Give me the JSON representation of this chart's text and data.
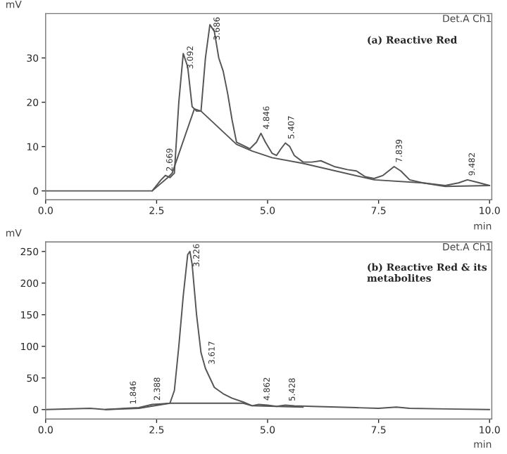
{
  "chart_data": [
    {
      "type": "line",
      "title": "(a) Reactive Red",
      "xlabel": "min",
      "ylabel": "mV",
      "xlim": [
        0,
        10.05
      ],
      "ylim": [
        -2,
        40
      ],
      "xticks": [
        {
          "value": 0,
          "label": "0.0"
        },
        {
          "value": 2.5,
          "label": "2.5"
        },
        {
          "value": 5,
          "label": "5.0"
        },
        {
          "value": 7.5,
          "label": "7.5"
        },
        {
          "value": 10,
          "label": "10.0"
        }
      ],
      "yticks": [
        0,
        10,
        20,
        30
      ],
      "grid": false,
      "series": [
        {
          "color": "#555555",
          "x": [
            0,
            2.4,
            2.6,
            2.7,
            2.8,
            2.9,
            3.0,
            3.1,
            3.2,
            3.3,
            3.4,
            3.5,
            3.6,
            3.7,
            3.8,
            3.9,
            4.0,
            4.1,
            4.2,
            4.3,
            4.4,
            4.6,
            4.75,
            4.85,
            4.95,
            5.1,
            5.2,
            5.3,
            5.4,
            5.5,
            5.6,
            5.8,
            6.0,
            6.2,
            6.5,
            6.8,
            7.0,
            7.2,
            7.4,
            7.6,
            7.85,
            8.0,
            8.2,
            8.5,
            9.0,
            9.3,
            9.5,
            9.7,
            10.0
          ],
          "values": [
            0,
            0,
            2.5,
            3.5,
            3,
            4,
            20,
            31,
            28,
            19,
            18,
            18,
            30,
            37.5,
            36,
            30,
            27,
            22,
            16,
            11,
            10.5,
            9.5,
            11,
            13,
            11,
            8.5,
            8,
            9.5,
            10.8,
            10,
            8,
            6.5,
            6.5,
            6.8,
            5.5,
            4.8,
            4.5,
            3.2,
            2.8,
            3.5,
            5.5,
            4.5,
            2.5,
            1.8,
            1.2,
            1.8,
            2.5,
            2,
            1.2
          ]
        },
        {
          "color": "#555555",
          "x": [
            2.4,
            2.75,
            2.85,
            3.35,
            3.5,
            4.3,
            4.65,
            5.1,
            5.8,
            7.4,
            8.5,
            9.0,
            10.0
          ],
          "values": [
            0,
            3,
            4,
            18.5,
            18,
            10.5,
            9,
            7.5,
            6.2,
            2.5,
            1.8,
            1,
            1.2
          ]
        }
      ],
      "annotations": [
        "Det.A Ch1",
        {
          "text": "2.669",
          "x": 2.67,
          "y": 3.5
        },
        {
          "text": "3.092",
          "x": 3.09,
          "y": 31
        },
        {
          "text": "3.686",
          "x": 3.69,
          "y": 37.5
        },
        {
          "text": "4.846",
          "x": 4.85,
          "y": 13
        },
        {
          "text": "5.407",
          "x": 5.41,
          "y": 10.8
        },
        {
          "text": "7.839",
          "x": 7.84,
          "y": 5.5
        },
        {
          "text": "9.482",
          "x": 9.48,
          "y": 2.5
        }
      ]
    },
    {
      "type": "line",
      "title": "(b) Reactive Red & its metabolites",
      "xlabel": "min",
      "ylabel": "mV",
      "xlim": [
        0,
        10.05
      ],
      "ylim": [
        -15,
        265
      ],
      "xticks": [
        {
          "value": 0,
          "label": "0.0"
        },
        {
          "value": 2.5,
          "label": "2.5"
        },
        {
          "value": 5,
          "label": "5.0"
        },
        {
          "value": 7.5,
          "label": "7.5"
        },
        {
          "value": 10,
          "label": "10.0"
        }
      ],
      "yticks": [
        0,
        50,
        100,
        150,
        200,
        250
      ],
      "grid": false,
      "series": [
        {
          "color": "#555555",
          "x": [
            0,
            1.0,
            1.35,
            1.8,
            2.1,
            2.4,
            2.6,
            2.8,
            2.9,
            3.0,
            3.1,
            3.2,
            3.25,
            3.3,
            3.4,
            3.5,
            3.6,
            3.7,
            3.8,
            4.0,
            4.2,
            4.45,
            4.65,
            4.8,
            5.0,
            5.2,
            5.4,
            5.6,
            6.0,
            7.0,
            7.5,
            7.9,
            8.2,
            9.0,
            10.0
          ],
          "values": [
            0,
            2,
            0,
            2,
            3,
            8,
            9,
            10,
            30,
            100,
            180,
            245,
            250,
            230,
            150,
            90,
            65,
            50,
            35,
            25,
            18,
            12,
            6,
            8,
            7,
            5,
            7,
            6,
            5,
            3,
            2,
            4,
            2,
            1,
            0
          ]
        },
        {
          "color": "#555555",
          "x": [
            1.35,
            2.1,
            2.8,
            3.6,
            4.45,
            4.65,
            5.2,
            5.8
          ],
          "values": [
            0,
            2,
            10,
            10,
            10,
            6,
            5,
            4
          ]
        }
      ],
      "annotations": [
        "Det.A Ch1",
        {
          "text": "1.846",
          "x": 1.85,
          "y": 2
        },
        {
          "text": "2.388",
          "x": 2.39,
          "y": 8
        },
        {
          "text": "3.226",
          "x": 3.23,
          "y": 250
        },
        {
          "text": "3.617",
          "x": 3.62,
          "y": 65
        },
        {
          "text": "4.862",
          "x": 4.86,
          "y": 8
        },
        {
          "text": "5.428",
          "x": 5.43,
          "y": 7
        }
      ]
    }
  ]
}
